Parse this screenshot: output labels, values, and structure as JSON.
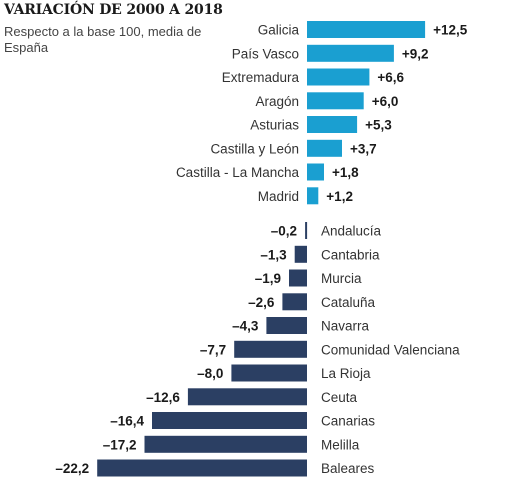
{
  "chart_data": {
    "type": "bar",
    "orientation": "horizontal",
    "title": "VARIACIÓN DE 2000 A 2018",
    "subtitle": "Respecto a la base 100, media de España",
    "categories": [
      "Galicia",
      "País Vasco",
      "Extremadura",
      "Aragón",
      "Asturias",
      "Castilla y León",
      "Castilla - La Mancha",
      "Madrid",
      "Andalucía",
      "Cantabria",
      "Murcia",
      "Cataluña",
      "Navarra",
      "Comunidad Valenciana",
      "La Rioja",
      "Ceuta",
      "Canarias",
      "Melilla",
      "Baleares"
    ],
    "values": [
      12.5,
      9.2,
      6.6,
      6.0,
      5.3,
      3.7,
      1.8,
      1.2,
      -0.2,
      -1.3,
      -1.9,
      -2.6,
      -4.3,
      -7.7,
      -8.0,
      -12.6,
      -16.4,
      -17.2,
      -22.2
    ],
    "value_labels": [
      "+12,5",
      "+9,2",
      "+6,6",
      "+6,0",
      "+5,3",
      "+3,7",
      "+1,8",
      "+1,2",
      "–0,2",
      "–1,3",
      "–1,9",
      "–2,6",
      "–4,3",
      "–7,7",
      "–8,0",
      "–12,6",
      "–16,4",
      "–17,2",
      "–22,2"
    ],
    "colors": {
      "positive": "#1a9fd1",
      "negative": "#2b3f63"
    },
    "grid": false,
    "legend": "none"
  }
}
